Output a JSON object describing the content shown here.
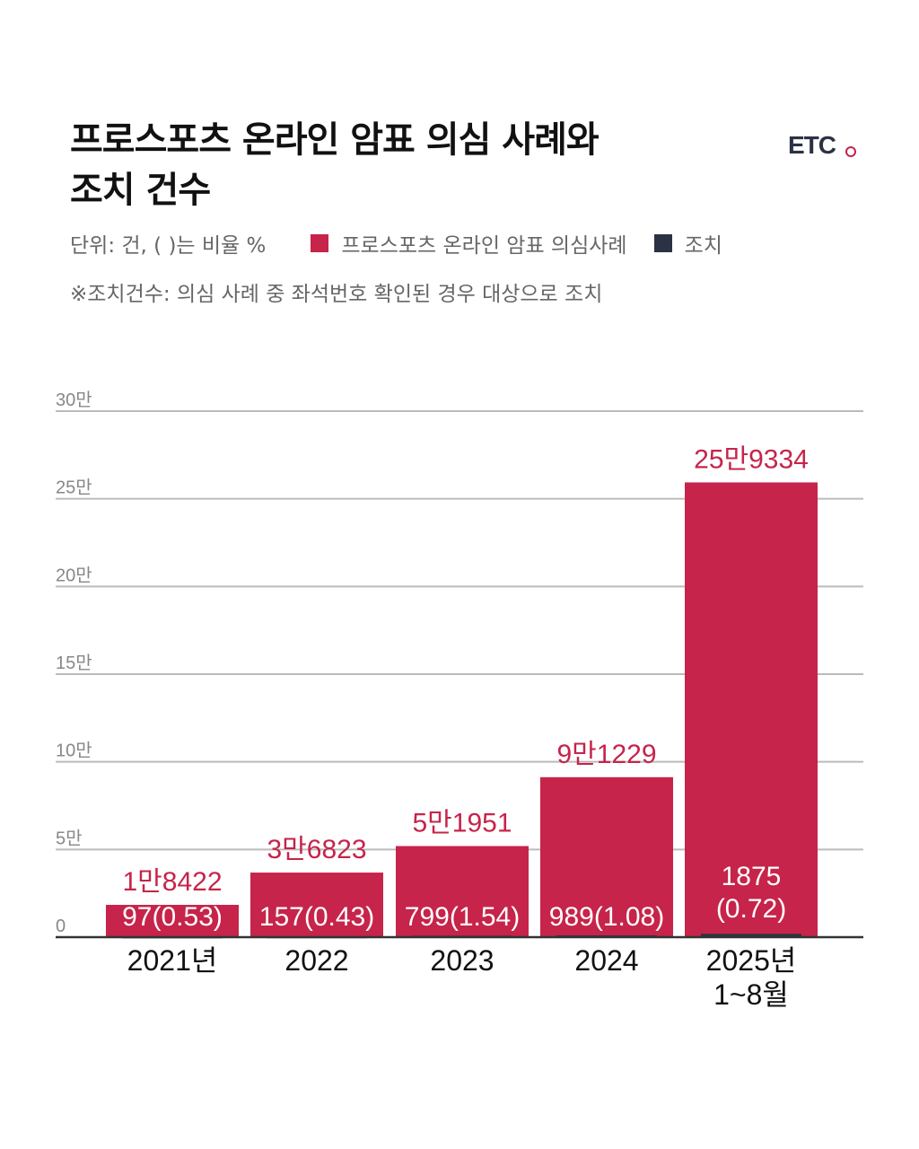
{
  "title": {
    "line1": "프로스포츠 온라인 암표 의심 사례와",
    "line2": "조치 건수"
  },
  "logo": "ETC",
  "unit_note": "단위: 건, ( )는 비율 %",
  "footnote": "※조치건수: 의심 사례 중 좌석번호 확인된 경우 대상으로 조치",
  "colors": {
    "suspected": "#c6244a",
    "action": "#2b3245",
    "grid": "#bbbbbb",
    "axis": "#333333"
  },
  "chart_data": {
    "type": "bar",
    "categories": [
      "2021년",
      "2022",
      "2023",
      "2024",
      "2025년\n1~8월"
    ],
    "series": [
      {
        "name": "프로스포츠 온라인 암표 의심사례",
        "values": [
          18422,
          36823,
          51951,
          91229,
          259334
        ]
      },
      {
        "name": "조치",
        "values": [
          97,
          157,
          799,
          989,
          1875
        ]
      }
    ],
    "action_ratio_percent": [
      0.53,
      0.43,
      1.54,
      1.08,
      0.72
    ],
    "suspected_labels": [
      "1만8422",
      "3만6823",
      "5만1951",
      "9만1229",
      "25만9334"
    ],
    "action_labels": [
      "97(0.53)",
      "157(0.43)",
      "799(1.54)",
      "989(1.08)",
      "1875\n(0.72)"
    ],
    "y_ticks": [
      0,
      50000,
      100000,
      150000,
      200000,
      250000,
      300000
    ],
    "y_tick_labels": [
      "0",
      "5만",
      "10만",
      "15만",
      "20만",
      "25만",
      "30만"
    ],
    "ylim": [
      0,
      300000
    ],
    "legend": "top",
    "grid": true
  }
}
